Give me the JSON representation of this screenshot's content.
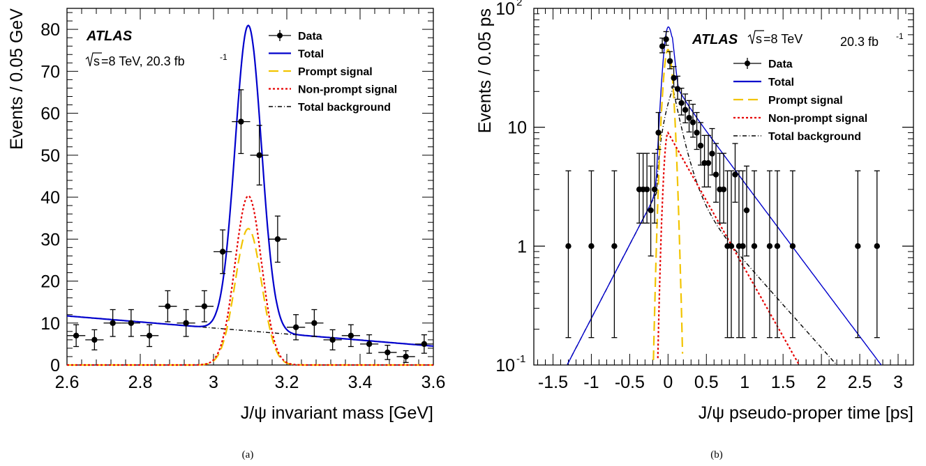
{
  "colors": {
    "data": "#000000",
    "total": "#0000cc",
    "prompt": "#f2c400",
    "nonprompt": "#e60000",
    "background": "#000000"
  },
  "chart_data": [
    {
      "type": "line",
      "caption": "(a)",
      "experiment": "ATLAS",
      "sqrt_s": "s",
      "energy_lumi": "=8 TeV, 20.3 fb",
      "lumi_exp": "-1",
      "xlabel": "J/ψ invariant mass [GeV]",
      "ylabel": "Events / 0.05 GeV",
      "xlim": [
        2.6,
        3.6
      ],
      "ylim": [
        0,
        85
      ],
      "yscale": "linear",
      "x_ticks": [
        "2.6",
        "2.8",
        "3",
        "3.2",
        "3.4",
        "3.6"
      ],
      "x_tick_values": [
        2.6,
        2.8,
        3.0,
        3.2,
        3.4,
        3.6
      ],
      "y_ticks": [
        "0",
        "10",
        "20",
        "30",
        "40",
        "50",
        "60",
        "70",
        "80"
      ],
      "y_tick_values": [
        0,
        10,
        20,
        30,
        40,
        50,
        60,
        70,
        80
      ],
      "legend_position": "top-right",
      "legend": [
        {
          "name": "Data",
          "style": "data"
        },
        {
          "name": "Total",
          "style": "total"
        },
        {
          "name": "Prompt signal",
          "style": "prompt"
        },
        {
          "name": "Non-prompt signal",
          "style": "nonprompt"
        },
        {
          "name": "Total background",
          "style": "background"
        }
      ],
      "data": {
        "x": [
          2.625,
          2.675,
          2.725,
          2.775,
          2.825,
          2.875,
          2.925,
          2.975,
          3.025,
          3.075,
          3.125,
          3.175,
          3.225,
          3.275,
          3.325,
          3.375,
          3.425,
          3.475,
          3.525,
          3.575
        ],
        "y": [
          7,
          6,
          10,
          10,
          7,
          14,
          10,
          14,
          27,
          58,
          50,
          30,
          9,
          10,
          6,
          7,
          5,
          3,
          2,
          5
        ],
        "xerr": 0.025,
        "yerr": [
          2.6,
          2.4,
          3.2,
          3.2,
          2.6,
          3.7,
          3.2,
          3.7,
          5.2,
          7.6,
          7.1,
          5.5,
          3.0,
          3.2,
          2.4,
          2.6,
          2.2,
          1.7,
          1.4,
          2.2
        ]
      },
      "model": {
        "background": {
          "slope_per_gev": -7.2,
          "value_at_2p6": 11.7,
          "value_at_3p6": 4.5
        },
        "prompt": {
          "peak": 32.5,
          "mean": 3.095,
          "sigma": 0.036
        },
        "nonprompt": {
          "peak": 40.3,
          "mean": 3.095,
          "sigma": 0.036
        }
      }
    },
    {
      "type": "line",
      "caption": "(b)",
      "experiment": "ATLAS",
      "sqrt_s": "s",
      "energy": "=8 TeV",
      "lumi": "20.3 fb",
      "lumi_exp": "-1",
      "xlabel": "J/ψ pseudo-proper time [ps]",
      "ylabel": "Events / 0.05 ps",
      "xlim": [
        -1.75,
        3.2
      ],
      "ylim": [
        0.1,
        100
      ],
      "yscale": "log",
      "x_ticks": [
        "-1.5",
        "-1",
        "-0.5",
        "0",
        "0.5",
        "1",
        "1.5",
        "2",
        "2.5",
        "3"
      ],
      "x_tick_values": [
        -1.5,
        -1,
        -0.5,
        0,
        0.5,
        1,
        1.5,
        2,
        2.5,
        3
      ],
      "y_ticks": [
        {
          "base": "10",
          "exp": "-1",
          "value": 0.1
        },
        {
          "base": "1",
          "exp": "",
          "value": 1
        },
        {
          "base": "10",
          "exp": "",
          "value": 10
        },
        {
          "base": "10",
          "exp": "2",
          "value": 100
        }
      ],
      "legend_position": "top-right",
      "legend": [
        {
          "name": "Data",
          "style": "data"
        },
        {
          "name": "Total",
          "style": "total"
        },
        {
          "name": "Prompt signal",
          "style": "prompt"
        },
        {
          "name": "Non-prompt signal",
          "style": "nonprompt"
        },
        {
          "name": "Total background",
          "style": "background"
        }
      ],
      "data": {
        "x": [
          -1.3,
          -1.0,
          -0.7,
          -0.375,
          -0.325,
          -0.275,
          -0.225,
          -0.175,
          -0.125,
          -0.075,
          -0.025,
          0.025,
          0.075,
          0.125,
          0.175,
          0.225,
          0.275,
          0.325,
          0.375,
          0.425,
          0.475,
          0.525,
          0.575,
          0.625,
          0.675,
          0.725,
          0.775,
          0.825,
          0.875,
          0.925,
          0.975,
          1.025,
          1.125,
          1.325,
          1.425,
          1.625,
          2.475,
          2.725
        ],
        "y": [
          1,
          1,
          1,
          3,
          3,
          3,
          2,
          3,
          9,
          48,
          55,
          36,
          26,
          21,
          16,
          14,
          12,
          11,
          9,
          7,
          5,
          5,
          6,
          4,
          3,
          3,
          1,
          1,
          4,
          1,
          1,
          2,
          1,
          1,
          1,
          1,
          1,
          1
        ],
        "errors": "Poisson (approx. sqrt)"
      },
      "model": {
        "total_peak": 78,
        "background_sigma_ps": 0.6,
        "background_tail_slope_ps": 0.4,
        "prompt_peak": 45,
        "prompt_sigma_ps": 0.055,
        "nonprompt_peak": 9,
        "nonprompt_tau_ps": 0.3,
        "total_tail_tau_ps": 0.5
      }
    }
  ]
}
